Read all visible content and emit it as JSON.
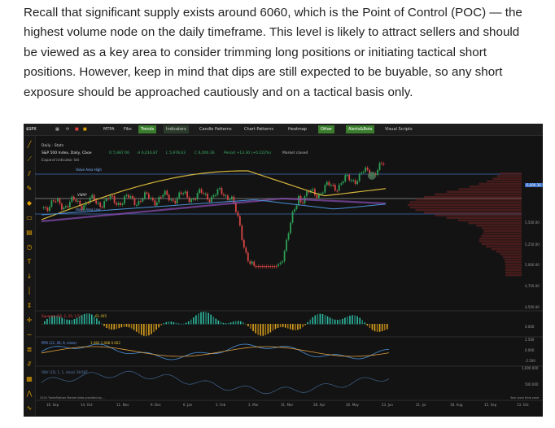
{
  "article": {
    "paragraph": "Recall that significant supply exists around 6060, which is the Point of Control (POC) — the highest volume node on the daily timeframe. This level is likely to attract sellers and should be viewed as a key area to consider trimming long positions or initiating tactical short positions. However, keep in mind that dips are still expected to be buyable, so any short exposure should be approached cautiously and on a tactical basis only."
  },
  "chart": {
    "symbol": "$SPX",
    "toolbar": [
      "MTPA",
      "Fibs",
      "Trends",
      "Indicators",
      "Candle Patterns",
      "Chart Patterns",
      "Heatmap",
      "Other",
      "Alerts&Bots",
      "Visual Scripts"
    ],
    "toolbar_highlight": [
      "Trends",
      "Other",
      "Alerts&Bots"
    ],
    "subbar": {
      "interval": "Daily",
      "style": "Stats"
    },
    "title_line": "S&P 500 Index, Daily, Cboe",
    "ohlc": {
      "o": "O 5,987.06",
      "h": "H 6,016.87",
      "l": "L 5,978.63",
      "c": "C 6,000.36",
      "change": "Period +13.30 (+0.222%)",
      "status": "Market closed"
    },
    "indicator_label": "Expand indicator list",
    "annotations": {
      "vah": "Value Area High",
      "vwap": "VWAP",
      "val": "Value Area Low"
    },
    "price_axis": [
      "6,000.00",
      "5,500.00",
      "5,250.00",
      "5,000.00",
      "4,750.00",
      "4,500.00"
    ],
    "last_price": "6,000.36",
    "panel1": {
      "label": "Squeeze (20, 2, 20, 1.5)",
      "value": "61.405",
      "axis": [
        "0.000"
      ]
    },
    "panel2": {
      "label": "PPO (12, 26, 9, close)",
      "values": "1.082  1.088  0.062",
      "axis": [
        "2.500",
        "0.000",
        "-2.500"
      ]
    },
    "panel3": {
      "label": "OBV (1D, 1, 1, close)  38.687",
      "axis": [
        "1,000.000",
        "500.000"
      ]
    },
    "footer_left": "2024 TradeStation  Market data provided by ...",
    "footer_right": "Your local time zone",
    "x_axis": [
      "16. Sep",
      "14. Oct",
      "11. Nov",
      "9. Dec",
      "6. Jan",
      "3. Feb",
      "3. Mar",
      "31. Mar",
      "28. Apr",
      "26. May",
      "23. Jun",
      "21. Jul",
      "18. Aug",
      "15. Sep",
      "13. Oct"
    ],
    "colors": {
      "up": "#2e9e55",
      "down": "#d84545",
      "yellow": "#d4b43c",
      "purple": "#8b4fb8",
      "blue": "#4a8fd6",
      "profile": "#5a2020"
    }
  }
}
